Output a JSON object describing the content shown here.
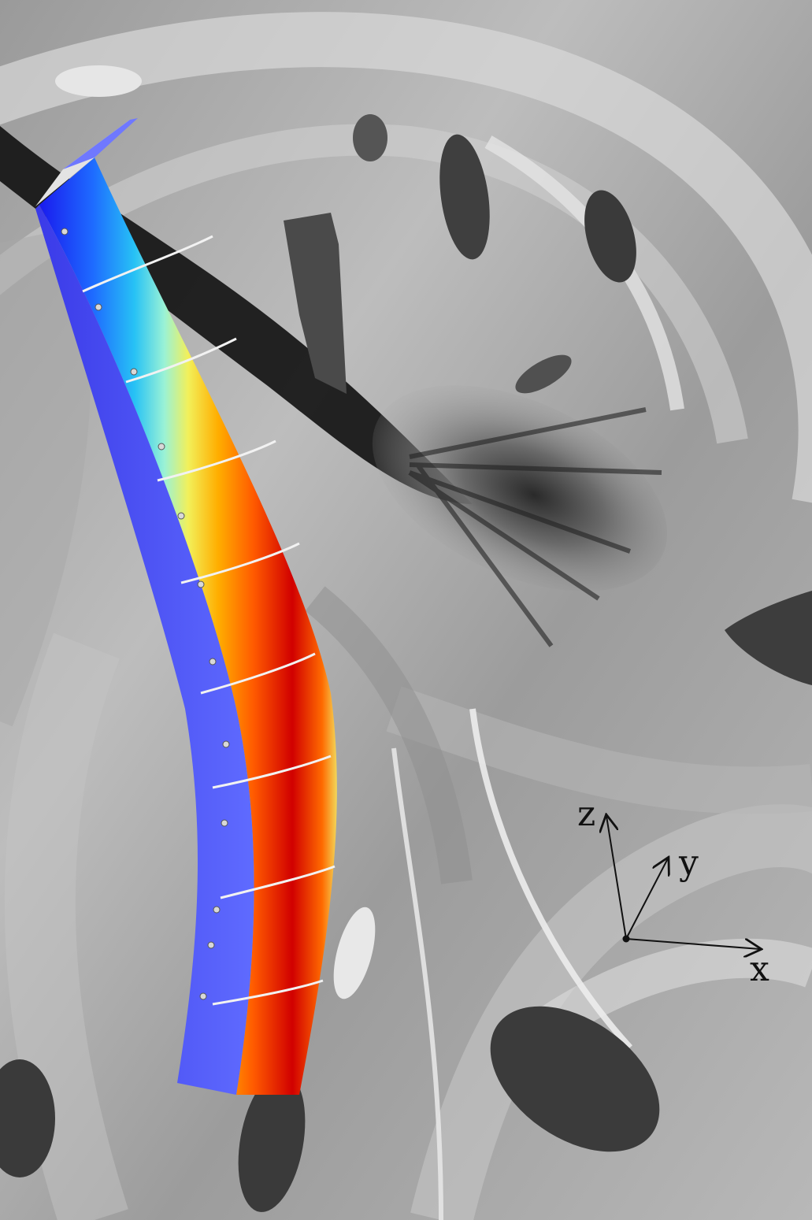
{
  "figure": {
    "axes_labels": {
      "x": "x",
      "y": "y",
      "z": "z"
    },
    "colormap": [
      "#1a1aee",
      "#1e6bff",
      "#27c2f5",
      "#9af2d6",
      "#f2f05a",
      "#ffae00",
      "#ff5a00",
      "#d10000"
    ],
    "background_palette": [
      "#5a5a5a",
      "#8a8a8a",
      "#b4b4b4",
      "#d8d8d8",
      "#efefef"
    ]
  }
}
